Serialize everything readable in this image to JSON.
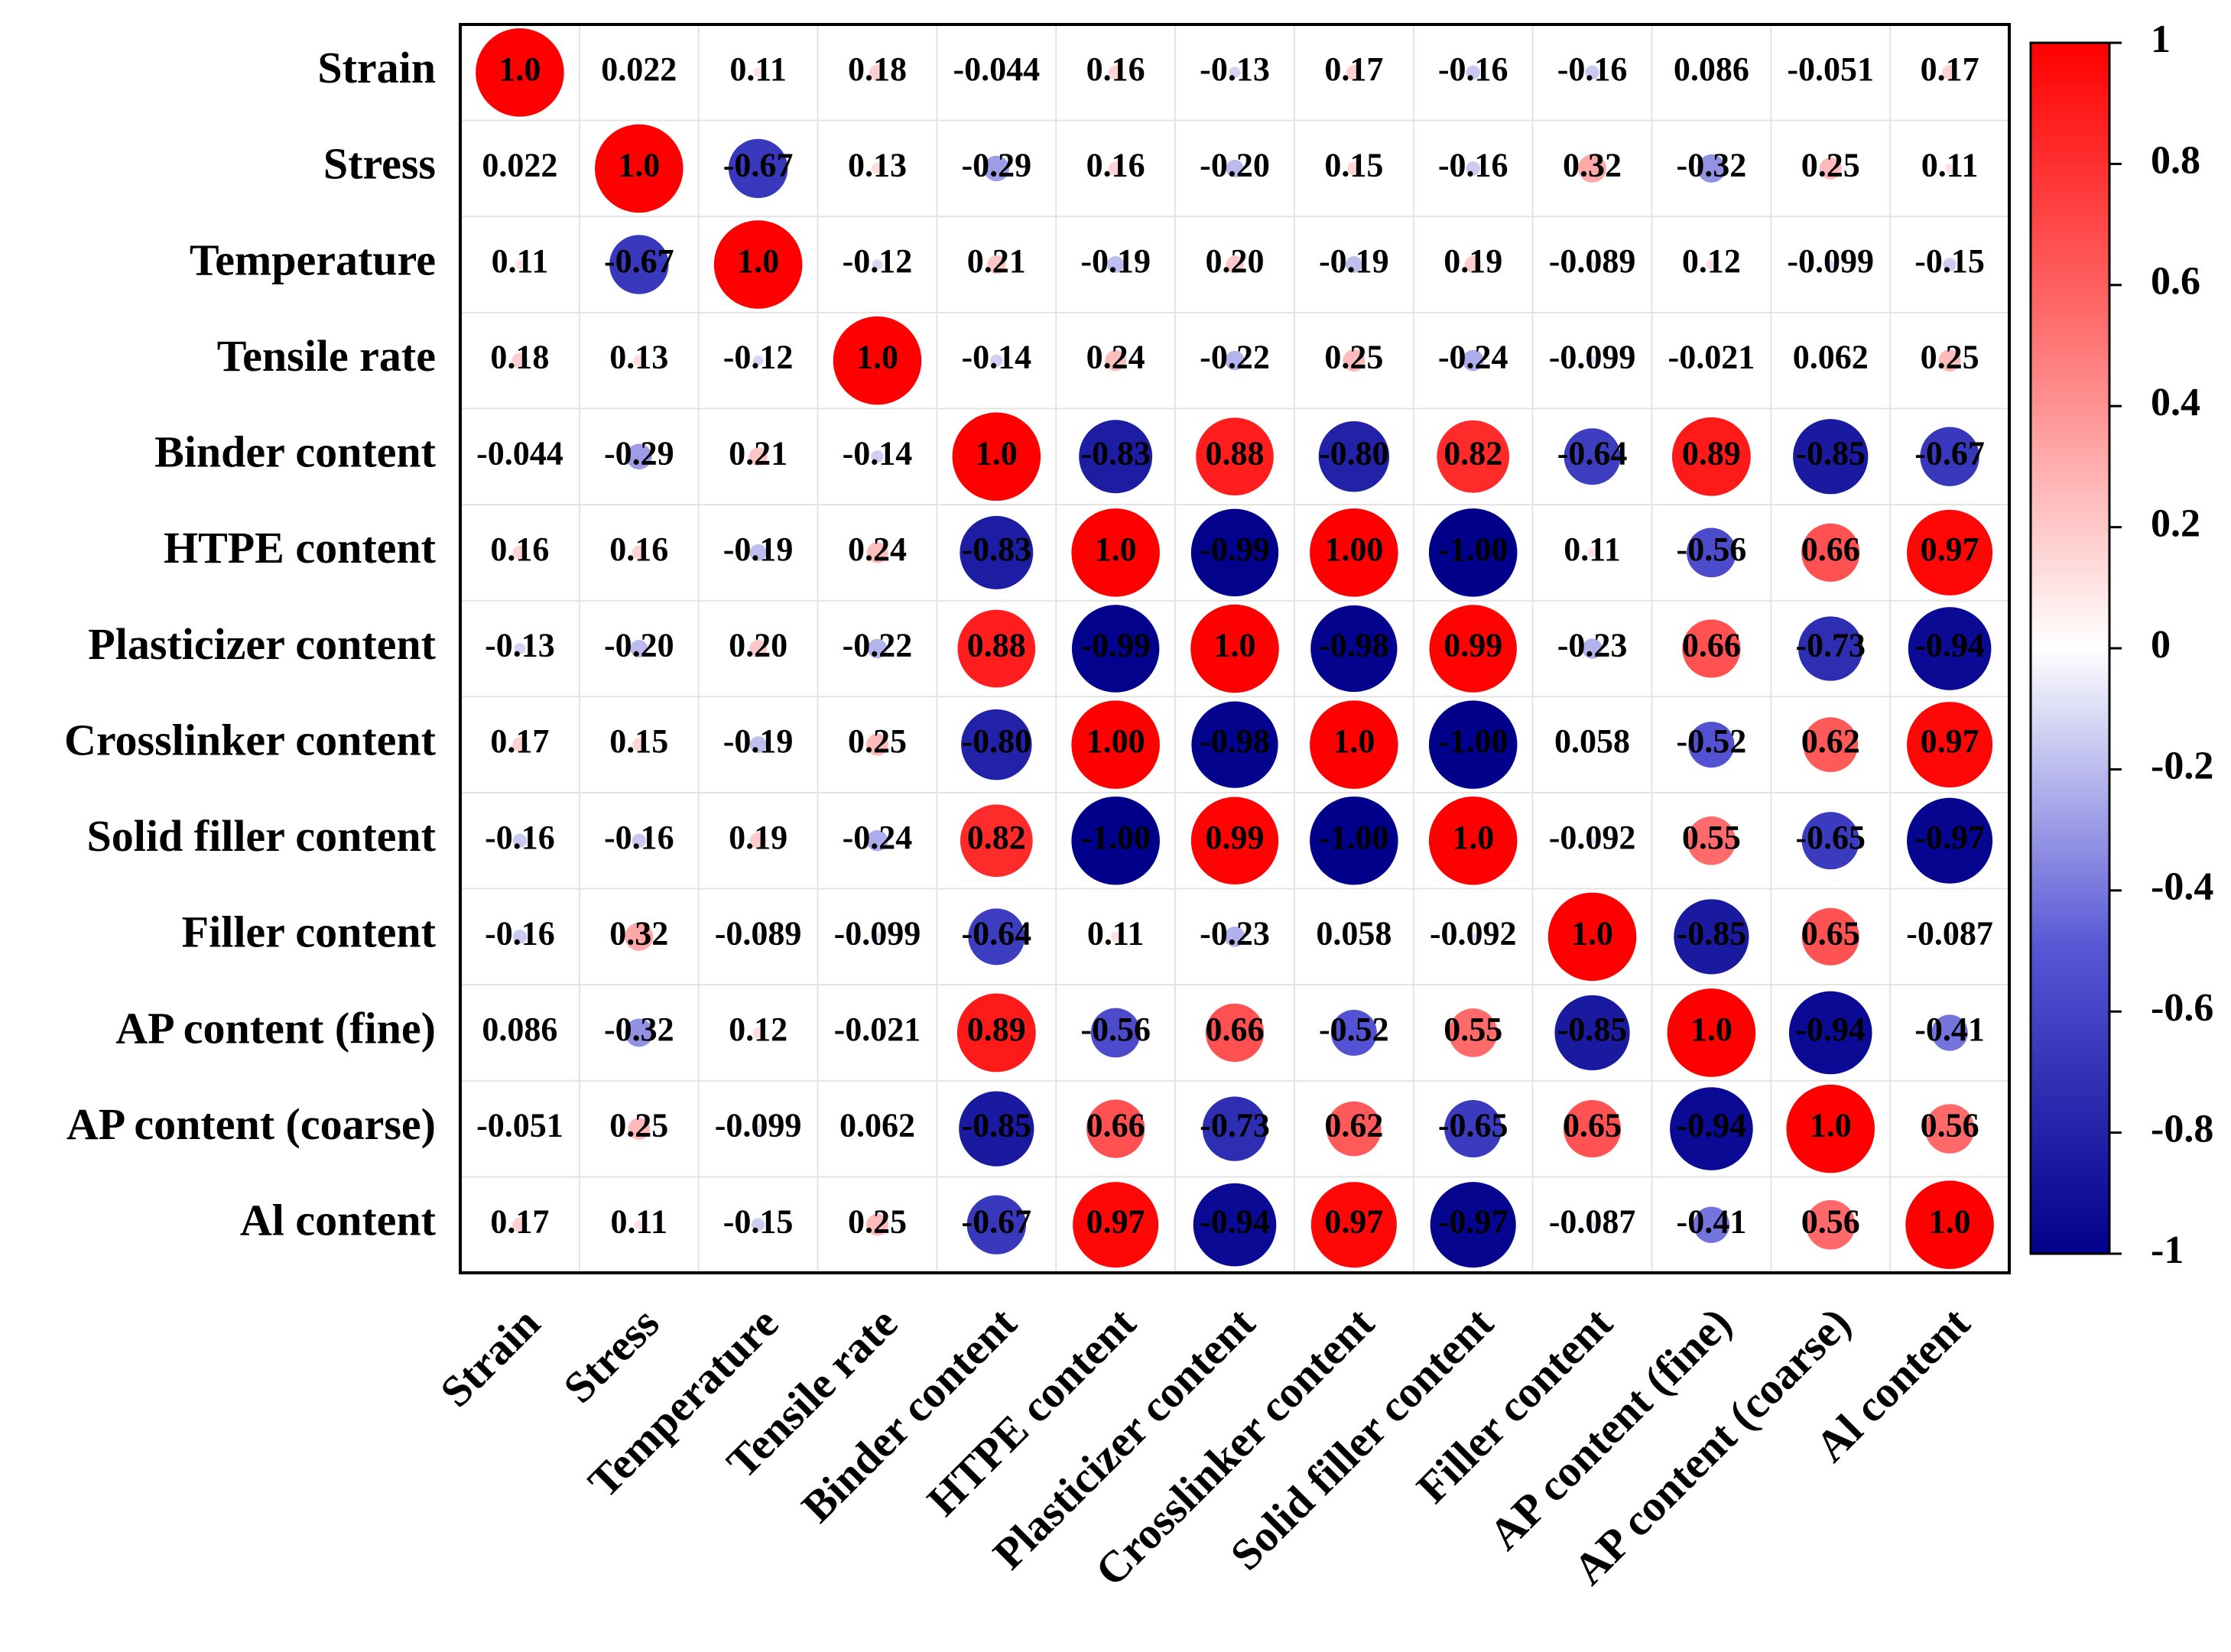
{
  "chart_data": {
    "type": "heatmap",
    "categories": [
      "Strain",
      "Stress",
      "Temperature",
      "Tensile rate",
      "Binder content",
      "HTPE content",
      "Plasticizer content",
      "Crosslinker content",
      "Solid filler content",
      "Filler content",
      "AP content (fine)",
      "AP content (coarse)",
      "Al content"
    ],
    "values": [
      [
        1,
        0.022,
        0.11,
        0.18,
        -0.044,
        0.16,
        -0.13,
        0.17,
        -0.16,
        -0.16,
        0.086,
        -0.051,
        0.17
      ],
      [
        0.022,
        1,
        -0.67,
        0.13,
        -0.29,
        0.16,
        -0.2,
        0.15,
        -0.16,
        0.32,
        -0.32,
        0.25,
        0.11
      ],
      [
        0.11,
        -0.67,
        1,
        -0.12,
        0.21,
        -0.19,
        0.2,
        -0.19,
        0.19,
        -0.089,
        0.12,
        -0.099,
        -0.15
      ],
      [
        0.18,
        0.13,
        -0.12,
        1,
        -0.14,
        0.24,
        -0.22,
        0.25,
        -0.24,
        -0.099,
        -0.021,
        0.062,
        0.25
      ],
      [
        -0.044,
        -0.29,
        0.21,
        -0.14,
        1,
        -0.83,
        0.88,
        -0.8,
        0.82,
        -0.64,
        0.89,
        -0.85,
        -0.67
      ],
      [
        0.16,
        0.16,
        -0.19,
        0.24,
        -0.83,
        1,
        -0.99,
        1,
        -1,
        0.11,
        -0.56,
        0.66,
        0.97
      ],
      [
        -0.13,
        -0.2,
        0.2,
        -0.22,
        0.88,
        -0.99,
        1,
        -0.98,
        0.99,
        -0.23,
        0.66,
        -0.73,
        -0.94
      ],
      [
        0.17,
        0.15,
        -0.19,
        0.25,
        -0.8,
        1,
        -0.98,
        1,
        -1,
        0.058,
        -0.52,
        0.62,
        0.97
      ],
      [
        -0.16,
        -0.16,
        0.19,
        -0.24,
        0.82,
        -1,
        0.99,
        -1,
        1,
        -0.092,
        0.55,
        -0.65,
        -0.97
      ],
      [
        -0.16,
        0.32,
        -0.089,
        -0.099,
        -0.64,
        0.11,
        -0.23,
        0.058,
        -0.092,
        1,
        -0.85,
        0.65,
        -0.087
      ],
      [
        0.086,
        -0.32,
        0.12,
        -0.021,
        0.89,
        -0.56,
        0.66,
        -0.52,
        0.55,
        -0.85,
        1,
        -0.94,
        -0.41
      ],
      [
        -0.051,
        0.25,
        -0.099,
        0.062,
        -0.85,
        0.66,
        -0.73,
        0.62,
        -0.65,
        0.65,
        -0.94,
        1,
        0.56
      ],
      [
        0.17,
        0.11,
        -0.15,
        0.25,
        -0.67,
        0.97,
        -0.94,
        0.97,
        -0.97,
        -0.087,
        -0.41,
        0.56,
        1
      ]
    ],
    "value_labels": [
      [
        "1.0",
        "0.022",
        "0.11",
        "0.18",
        "-0.044",
        "0.16",
        "-0.13",
        "0.17",
        "-0.16",
        "-0.16",
        "0.086",
        "-0.051",
        "0.17"
      ],
      [
        "0.022",
        "1.0",
        "-0.67",
        "0.13",
        "-0.29",
        "0.16",
        "-0.20",
        "0.15",
        "-0.16",
        "0.32",
        "-0.32",
        "0.25",
        "0.11"
      ],
      [
        "0.11",
        "-0.67",
        "1.0",
        "-0.12",
        "0.21",
        "-0.19",
        "0.20",
        "-0.19",
        "0.19",
        "-0.089",
        "0.12",
        "-0.099",
        "-0.15"
      ],
      [
        "0.18",
        "0.13",
        "-0.12",
        "1.0",
        "-0.14",
        "0.24",
        "-0.22",
        "0.25",
        "-0.24",
        "-0.099",
        "-0.021",
        "0.062",
        "0.25"
      ],
      [
        "-0.044",
        "-0.29",
        "0.21",
        "-0.14",
        "1.0",
        "-0.83",
        "0.88",
        "-0.80",
        "0.82",
        "-0.64",
        "0.89",
        "-0.85",
        "-0.67"
      ],
      [
        "0.16",
        "0.16",
        "-0.19",
        "0.24",
        "-0.83",
        "1.0",
        "-0.99",
        "1.00",
        "-1.00",
        "0.11",
        "-0.56",
        "0.66",
        "0.97"
      ],
      [
        "-0.13",
        "-0.20",
        "0.20",
        "-0.22",
        "0.88",
        "-0.99",
        "1.0",
        "-0.98",
        "0.99",
        "-0.23",
        "0.66",
        "-0.73",
        "-0.94"
      ],
      [
        "0.17",
        "0.15",
        "-0.19",
        "0.25",
        "-0.80",
        "1.00",
        "-0.98",
        "1.0",
        "-1.00",
        "0.058",
        "-0.52",
        "0.62",
        "0.97"
      ],
      [
        "-0.16",
        "-0.16",
        "0.19",
        "-0.24",
        "0.82",
        "-1.00",
        "0.99",
        "-1.00",
        "1.0",
        "-0.092",
        "0.55",
        "-0.65",
        "-0.97"
      ],
      [
        "-0.16",
        "0.32",
        "-0.089",
        "-0.099",
        "-0.64",
        "0.11",
        "-0.23",
        "0.058",
        "-0.092",
        "1.0",
        "-0.85",
        "0.65",
        "-0.087"
      ],
      [
        "0.086",
        "-0.32",
        "0.12",
        "-0.021",
        "0.89",
        "-0.56",
        "0.66",
        "-0.52",
        "0.55",
        "-0.85",
        "1.0",
        "-0.94",
        "-0.41"
      ],
      [
        "-0.051",
        "0.25",
        "-0.099",
        "0.062",
        "-0.85",
        "0.66",
        "-0.73",
        "0.62",
        "-0.65",
        "0.65",
        "-0.94",
        "1.0",
        "0.56"
      ],
      [
        "0.17",
        "0.11",
        "-0.15",
        "0.25",
        "-0.67",
        "0.97",
        "-0.94",
        "0.97",
        "-0.97",
        "-0.087",
        "-0.41",
        "0.56",
        "1.0"
      ]
    ],
    "clim": [
      -1,
      1
    ],
    "cticks": [
      1,
      0.8,
      0.6,
      0.4,
      0.2,
      0,
      -0.2,
      -0.4,
      -0.6,
      -0.8,
      -1
    ],
    "colorscale": [
      [
        -1,
        "#00008b"
      ],
      [
        -0.5,
        "#5555d5"
      ],
      [
        0,
        "#ffffff"
      ],
      [
        0.5,
        "#ff7777"
      ],
      [
        1,
        "#ff0000"
      ]
    ],
    "grid": true
  }
}
